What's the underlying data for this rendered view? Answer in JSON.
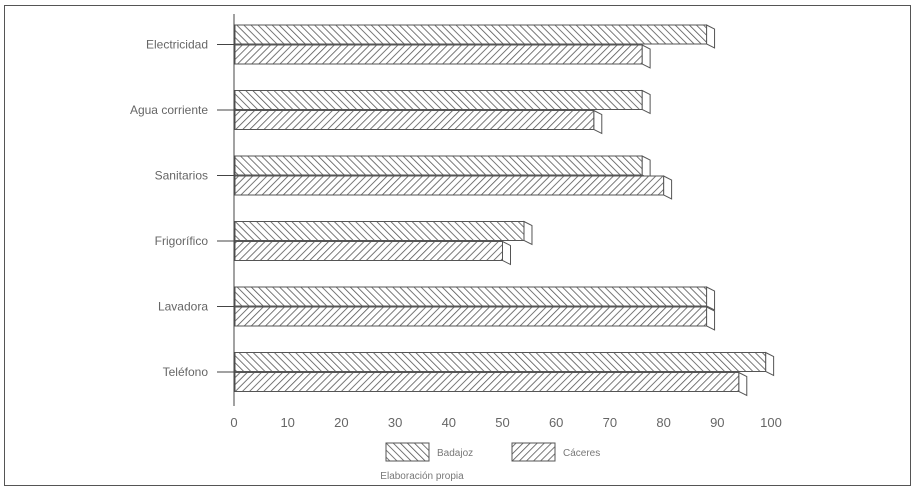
{
  "chart_data": {
    "type": "bar",
    "orientation": "horizontal",
    "title": "",
    "xlabel": "",
    "ylabel": "",
    "xlim": [
      0,
      100
    ],
    "x_ticks": [
      0,
      10,
      20,
      30,
      40,
      50,
      60,
      70,
      80,
      90,
      100
    ],
    "grid": false,
    "legend_position": "bottom",
    "categories": [
      "Electricidad",
      "Agua corriente",
      "Sanitarios",
      "Frigorífico",
      "Lavadora",
      "Teléfono"
    ],
    "series": [
      {
        "name": "Badajoz",
        "values": [
          88,
          76,
          76,
          54,
          88,
          99
        ],
        "pattern": "backslash-hatch"
      },
      {
        "name": "Cáceres",
        "values": [
          76,
          67,
          80,
          50,
          88,
          94
        ],
        "pattern": "slash-hatch"
      }
    ],
    "note": "Elaboración propia"
  },
  "colors": {
    "ink": "#555555",
    "label": "#666666",
    "frame": "#555555"
  }
}
